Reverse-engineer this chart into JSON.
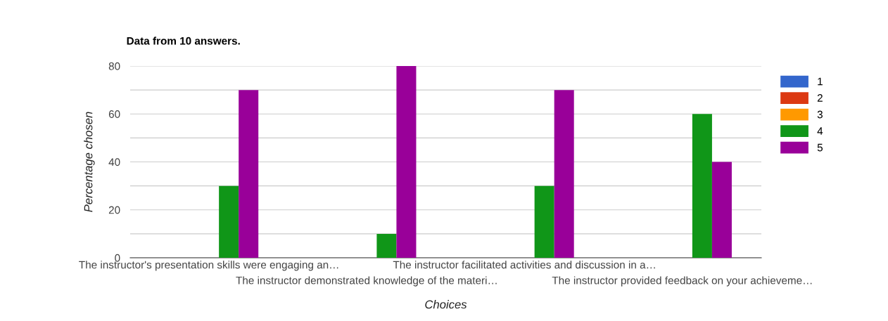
{
  "chart_data": {
    "type": "bar",
    "title": "Data from 10 answers.",
    "xlabel": "Choices",
    "ylabel": "Percentage chosen",
    "categories": [
      "The instructor's presentation skills were engaging an…",
      "The instructor demonstrated knowledge of the materi…",
      "The instructor facilitated activities and discussion in a…",
      "The instructor provided feedback on your achieveme…"
    ],
    "series": [
      {
        "name": "1",
        "color": "#3366cc",
        "values": [
          0,
          0,
          0,
          0
        ]
      },
      {
        "name": "2",
        "color": "#dc3912",
        "values": [
          0,
          0,
          0,
          0
        ]
      },
      {
        "name": "3",
        "color": "#ff9900",
        "values": [
          0,
          0,
          0,
          0
        ]
      },
      {
        "name": "4",
        "color": "#109618",
        "values": [
          30,
          10,
          30,
          60
        ]
      },
      {
        "name": "5",
        "color": "#990099",
        "values": [
          70,
          80,
          70,
          40
        ]
      }
    ],
    "ylim": [
      0,
      80
    ],
    "yticks": [
      0,
      {
        "value": 10,
        "label": null
      },
      20,
      {
        "value": 30,
        "label": null
      },
      40,
      {
        "value": 50,
        "label": null
      },
      60,
      {
        "value": 70,
        "label": null
      },
      80
    ],
    "grid": "y",
    "legend": "top right"
  }
}
